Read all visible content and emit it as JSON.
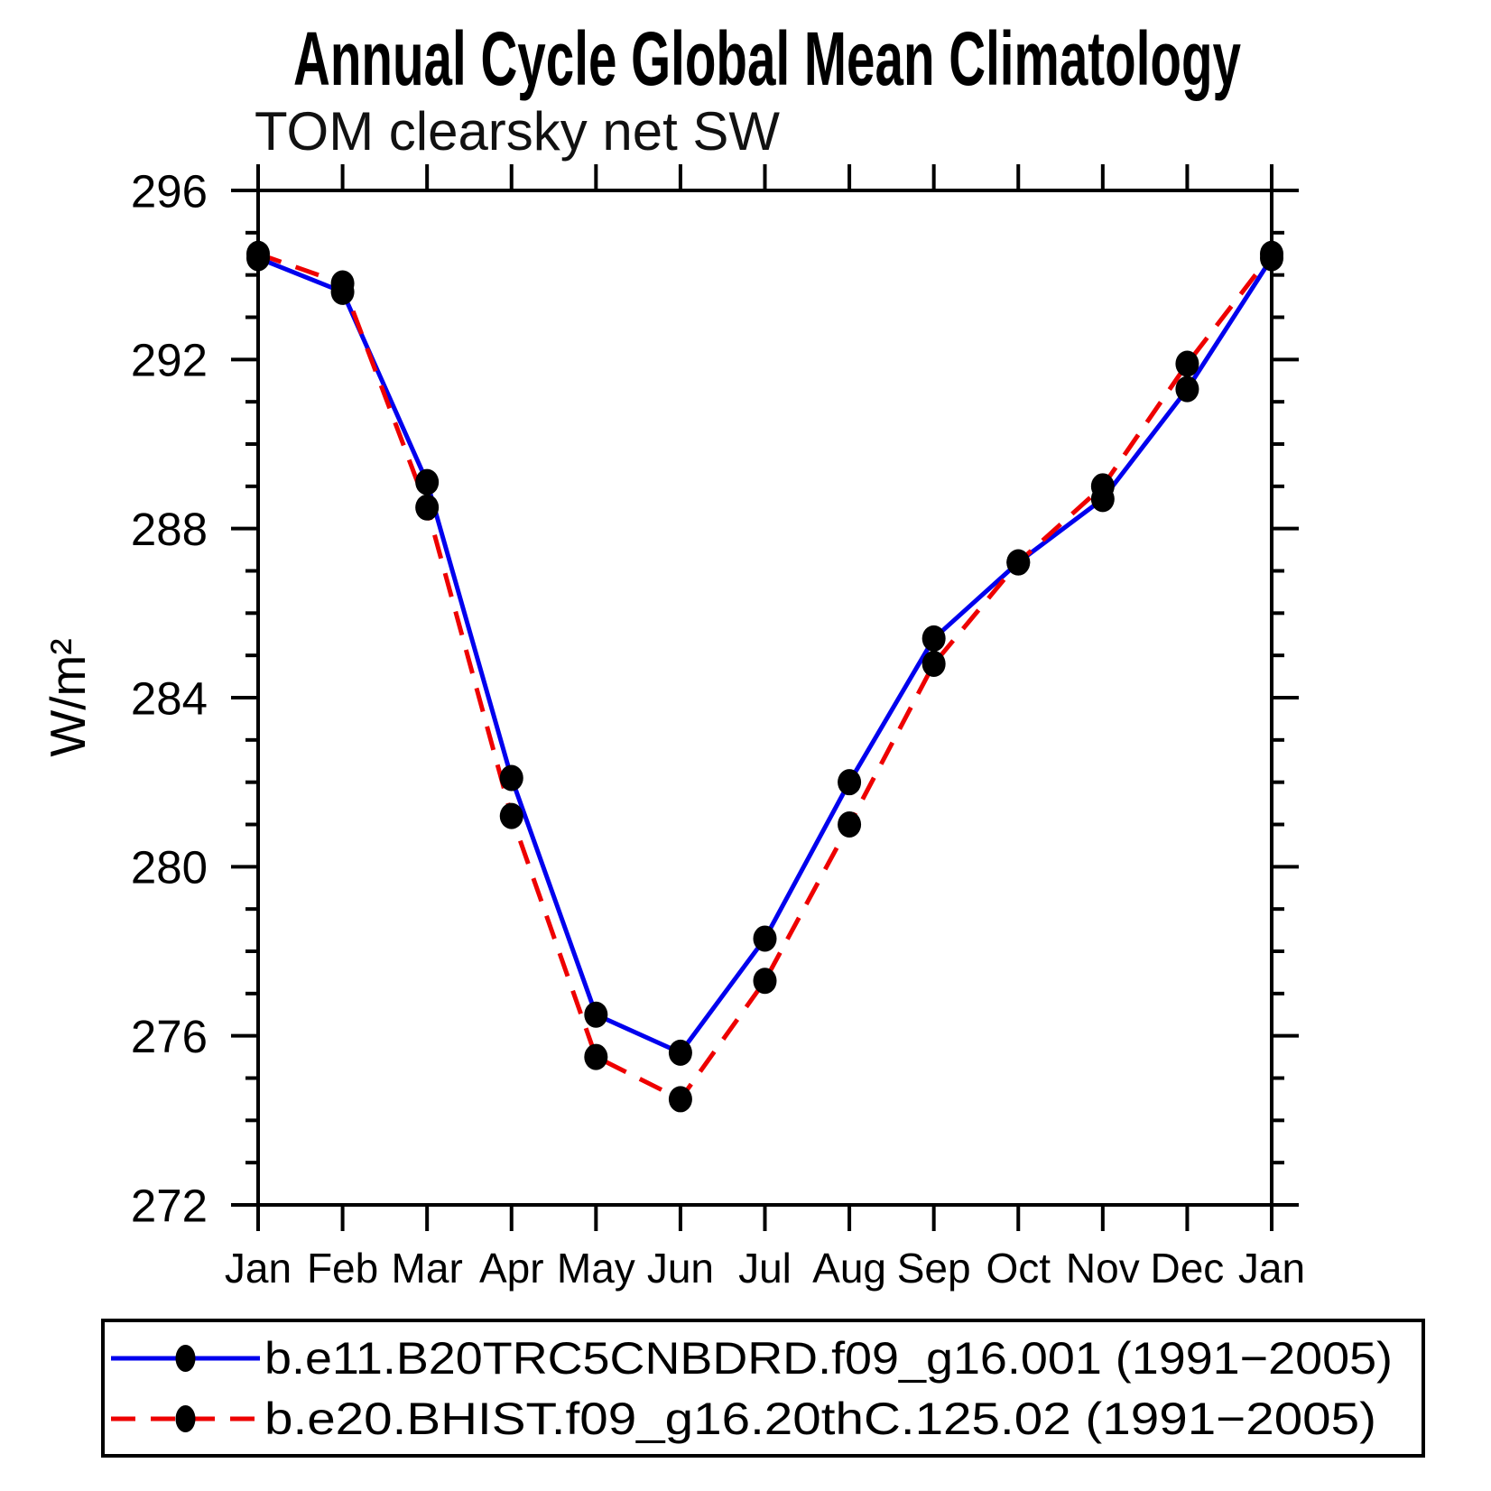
{
  "title": "Annual Cycle Global Mean Climatology",
  "subtitle": "TOM clearsky net SW",
  "ylabel": "W/m²",
  "axis_color": "#000000",
  "background_color": "#ffffff",
  "chart_data": {
    "type": "line",
    "x_categories": [
      "Jan",
      "Feb",
      "Mar",
      "Apr",
      "May",
      "Jun",
      "Jul",
      "Aug",
      "Sep",
      "Oct",
      "Nov",
      "Dec",
      "Jan"
    ],
    "ylim": [
      272,
      296
    ],
    "ytick_major": [
      272,
      276,
      280,
      284,
      288,
      292,
      296
    ],
    "ytick_minor_step": 1,
    "grid": false,
    "legend_position": "bottom-outside-box",
    "marker_color": "#000000",
    "series": [
      {
        "name": "b.e11.B20TRC5CNBDRD.f09_g16.001 (1991−2005)",
        "color": "#0000ee",
        "style": "solid",
        "marker": "filled-circle",
        "values": [
          294.4,
          293.6,
          289.1,
          282.1,
          276.5,
          275.6,
          278.3,
          282.0,
          285.4,
          287.2,
          288.7,
          291.3,
          294.4
        ]
      },
      {
        "name": "b.e20.BHIST.f09_g16.20thC.125.02 (1991−2005)",
        "color": "#ee0000",
        "style": "dashed",
        "marker": "filled-circle",
        "values": [
          294.5,
          293.8,
          288.5,
          281.2,
          275.5,
          274.5,
          277.3,
          281.0,
          284.8,
          287.2,
          289.0,
          291.9,
          294.5
        ]
      }
    ]
  }
}
